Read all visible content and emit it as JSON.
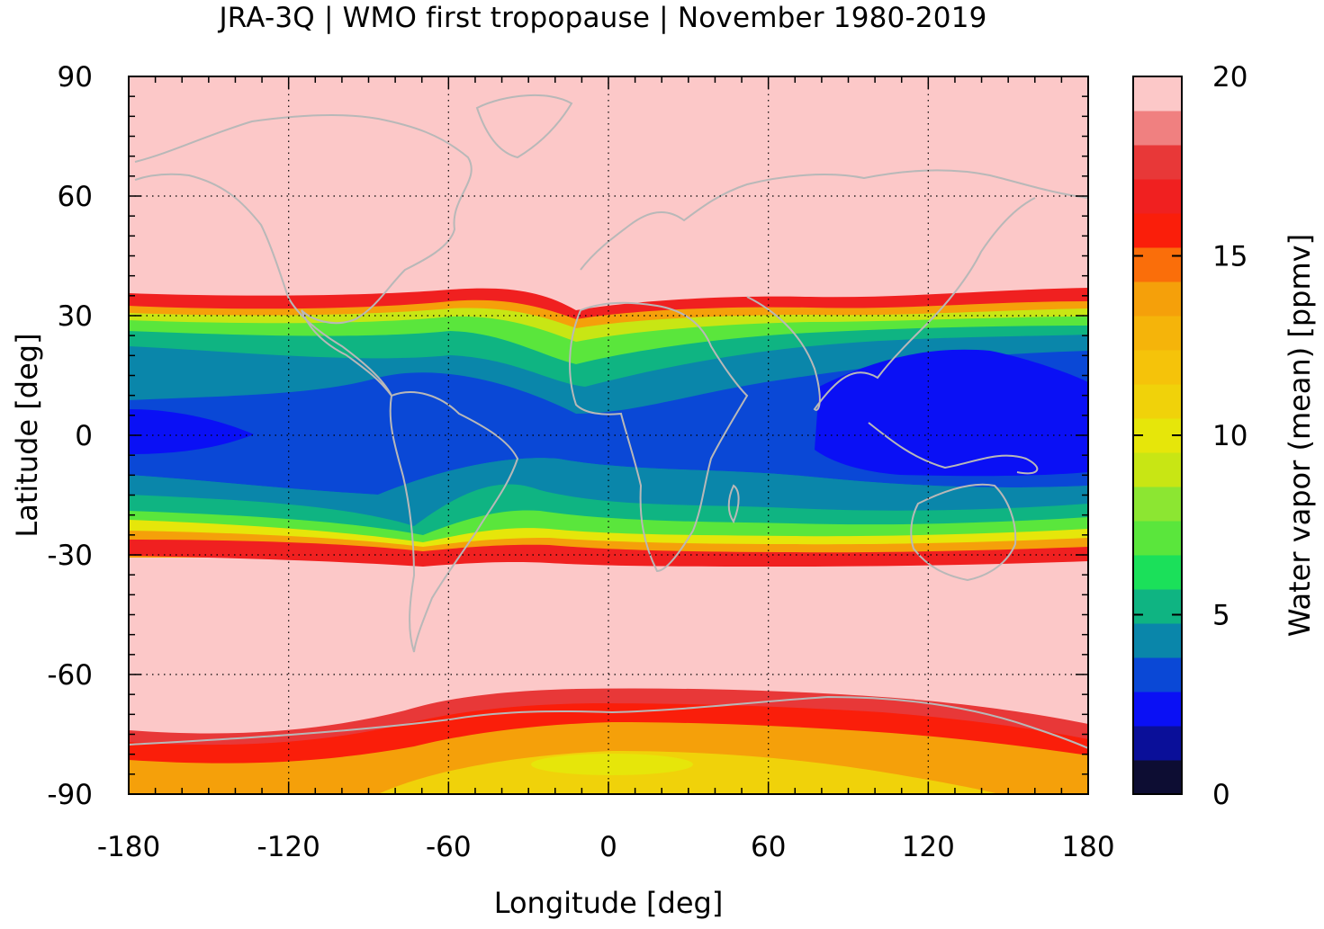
{
  "title": "JRA-3Q | WMO first tropopause | November 1980-2019",
  "chart_data": {
    "type": "heatmap",
    "title": "JRA-3Q | WMO first tropopause | November 1980-2019",
    "xlabel": "Longitude [deg]",
    "ylabel": "Latitude [deg]",
    "xlim": [
      -180,
      180
    ],
    "ylim": [
      -90,
      90
    ],
    "xticks": [
      "-180",
      "-120",
      "-60",
      "0",
      "60",
      "120",
      "180"
    ],
    "yticks": [
      "90",
      "60",
      "30",
      "0",
      "-30",
      "-60",
      "-90"
    ],
    "grid": true,
    "overlay": "coastlines",
    "colorbar": {
      "label": "Water vapor (mean) [ppmv]",
      "min": 0,
      "max": 20,
      "ticks": [
        "20",
        "15",
        "10",
        "5",
        "0"
      ],
      "colors": [
        "#0d0d33",
        "#0a0f99",
        "#0a10f5",
        "#0a48d6",
        "#0a86aa",
        "#0fb482",
        "#1be05a",
        "#5ae63c",
        "#8ce632",
        "#c8e614",
        "#e6e60a",
        "#f0d20a",
        "#f5c30a",
        "#f5b40a",
        "#f5a00a",
        "#fa6e0a",
        "#fa1e0a",
        "#f02020",
        "#e83838",
        "#f08080",
        "#fcc8c8"
      ]
    },
    "values_ppmv_zonal_profile": [
      {
        "lat": 90,
        "value": 20
      },
      {
        "lat": 35,
        "value": 20
      },
      {
        "lat": 32,
        "value": 16
      },
      {
        "lat": 25,
        "value": 7
      },
      {
        "lat": 15,
        "value": 4.5
      },
      {
        "lat": 0,
        "value": 3.5
      },
      {
        "lat": -15,
        "value": 4.5
      },
      {
        "lat": -25,
        "value": 8
      },
      {
        "lat": -30,
        "value": 16
      },
      {
        "lat": -33,
        "value": 20
      },
      {
        "lat": -66,
        "value": 20
      },
      {
        "lat": -72,
        "value": 15
      },
      {
        "lat": -82,
        "value": 12
      },
      {
        "lat": -90,
        "value": 13
      }
    ]
  }
}
